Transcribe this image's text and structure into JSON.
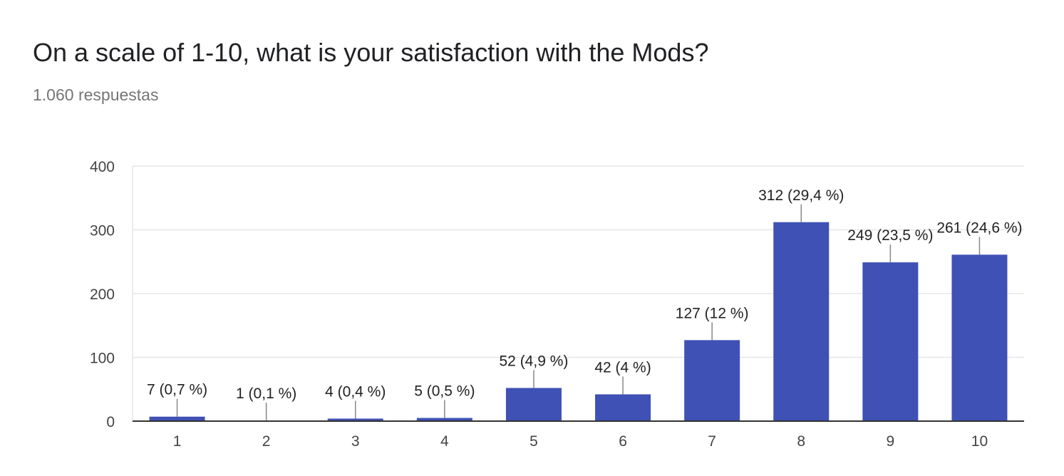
{
  "card": {
    "title": "On a scale of 1-10, what is your satisfaction with the Mods?",
    "response_count": "1.060 respuestas"
  },
  "colors": {
    "bar": "#3f51b5",
    "gridline": "#e6e6e6",
    "axis": "#333333",
    "leader": "#888888"
  },
  "chart_data": {
    "type": "bar",
    "title": "On a scale of 1-10, what is your satisfaction with the Mods?",
    "categories": [
      "1",
      "2",
      "3",
      "4",
      "5",
      "6",
      "7",
      "8",
      "9",
      "10"
    ],
    "values": [
      7,
      1,
      4,
      5,
      52,
      42,
      127,
      312,
      249,
      261
    ],
    "data_labels": [
      "7 (0,7 %)",
      "1 (0,1 %)",
      "4 (0,4 %)",
      "5 (0,5 %)",
      "52 (4,9 %)",
      "42 (4 %)",
      "127 (12 %)",
      "312 (29,4 %)",
      "249 (23,5 %)",
      "261 (24,6 %)"
    ],
    "xlabel": "",
    "ylabel": "",
    "ylim": [
      0,
      400
    ],
    "yticks": [
      0,
      100,
      200,
      300,
      400
    ],
    "grid": true,
    "legend": "none"
  }
}
